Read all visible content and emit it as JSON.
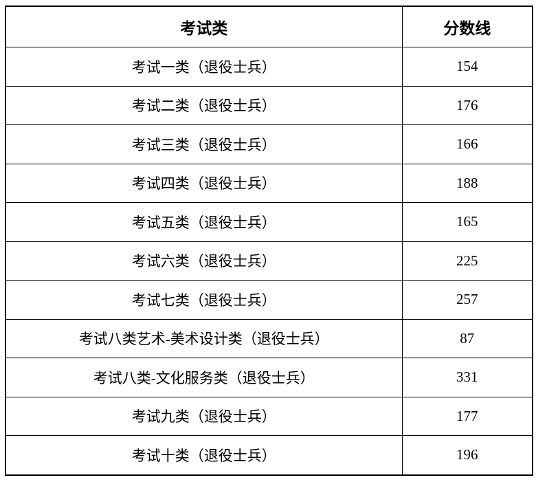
{
  "table": {
    "columns": [
      {
        "label": "考试类"
      },
      {
        "label": "分数线"
      }
    ],
    "rows": [
      {
        "category": "考试一类（退役士兵）",
        "score": "154"
      },
      {
        "category": "考试二类（退役士兵）",
        "score": "176"
      },
      {
        "category": "考试三类（退役士兵）",
        "score": "166"
      },
      {
        "category": "考试四类（退役士兵）",
        "score": "188"
      },
      {
        "category": "考试五类（退役士兵）",
        "score": "165"
      },
      {
        "category": "考试六类（退役士兵）",
        "score": "225"
      },
      {
        "category": "考试七类（退役士兵）",
        "score": "257"
      },
      {
        "category": "考试八类艺术-美术设计类（退役士兵）",
        "score": "87"
      },
      {
        "category": "考试八类-文化服务类（退役士兵）",
        "score": "331"
      },
      {
        "category": "考试九类（退役士兵）",
        "score": "177"
      },
      {
        "category": "考试十类（退役士兵）",
        "score": "196"
      }
    ],
    "colors": {
      "border": "#000000",
      "text": "#000000",
      "background": "#ffffff"
    }
  }
}
